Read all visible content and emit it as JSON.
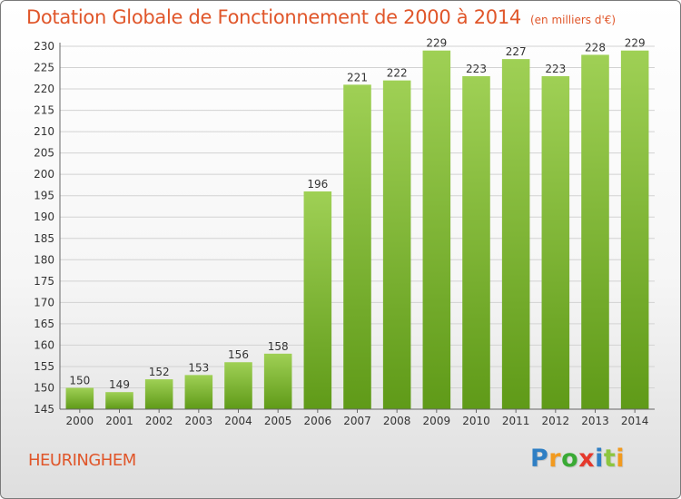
{
  "title": "Dotation Globale de Fonctionnement de 2000 à 2014",
  "subtitle": "(en milliers d'€)",
  "commune": "HEURINGHEM",
  "logo": {
    "letters": [
      {
        "char": "P",
        "color": "#2f7fc4"
      },
      {
        "char": "r",
        "color": "#f29a1f"
      },
      {
        "char": "o",
        "color": "#3aaa35"
      },
      {
        "char": "x",
        "color": "#e5392c"
      },
      {
        "char": "i",
        "color": "#2f7fc4"
      },
      {
        "char": "t",
        "color": "#8dc63f"
      },
      {
        "char": "i",
        "color": "#f29a1f"
      }
    ]
  },
  "chart_data": {
    "type": "bar",
    "title": "Dotation Globale de Fonctionnement de 2000 à 2014",
    "subtitle": "(en milliers d'€)",
    "categories": [
      "2000",
      "2001",
      "2002",
      "2003",
      "2004",
      "2005",
      "2006",
      "2007",
      "2008",
      "2009",
      "2010",
      "2011",
      "2012",
      "2013",
      "2014"
    ],
    "values": [
      150,
      149,
      152,
      153,
      156,
      158,
      196,
      221,
      222,
      229,
      223,
      227,
      223,
      228,
      229
    ],
    "ylim": [
      145,
      230
    ],
    "ytick_step": 5,
    "xlabel": "",
    "ylabel": "",
    "grid": true,
    "bar_color_top": "#9fd055",
    "bar_color_bottom": "#5f9a18"
  }
}
